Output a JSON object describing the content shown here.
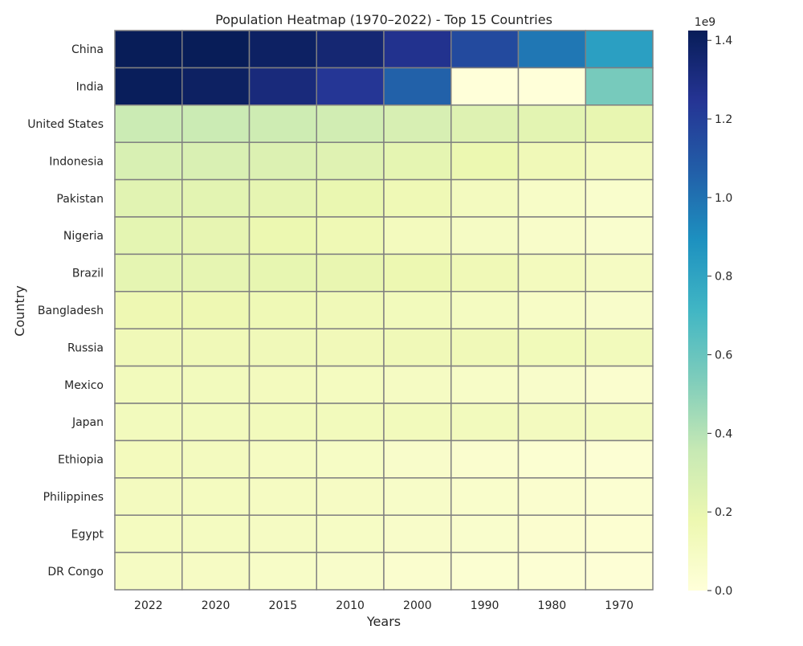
{
  "chart_data": {
    "type": "heatmap",
    "title": "Population Heatmap (1970–2022) - Top 15 Countries",
    "xlabel": "Years",
    "ylabel": "Country",
    "colormap": "YlGnBu",
    "colorbar": {
      "ticks": [
        0.0,
        0.2,
        0.4,
        0.6,
        0.8,
        1.0,
        1.2,
        1.4
      ],
      "tick_labels": [
        "0.0",
        "0.2",
        "0.4",
        "0.6",
        "0.8",
        "1.0",
        "1.2",
        "1.4"
      ],
      "scale_label": "1e9",
      "range": [
        0.0,
        1.425
      ]
    },
    "cell_border_color": "#808080",
    "x_labels": [
      "2022",
      "2020",
      "2015",
      "2010",
      "2000",
      "1990",
      "1980",
      "1970"
    ],
    "y_labels": [
      "China",
      "India",
      "United States",
      "Indonesia",
      "Pakistan",
      "Nigeria",
      "Brazil",
      "Bangladesh",
      "Russia",
      "Mexico",
      "Japan",
      "Ethiopia",
      "Philippines",
      "Egypt",
      "DR Congo"
    ],
    "values": [
      [
        1.425,
        1.424,
        1.393,
        1.348,
        1.264,
        1.154,
        0.982,
        0.822
      ],
      [
        1.417,
        1.396,
        1.322,
        1.24,
        1.059,
        0.0,
        0.0,
        0.557
      ],
      [
        0.338,
        0.336,
        0.325,
        0.311,
        0.282,
        0.248,
        0.223,
        0.2
      ],
      [
        0.275,
        0.271,
        0.259,
        0.244,
        0.214,
        0.182,
        0.148,
        0.115
      ],
      [
        0.236,
        0.227,
        0.21,
        0.194,
        0.154,
        0.115,
        0.081,
        0.059
      ],
      [
        0.218,
        0.208,
        0.183,
        0.16,
        0.122,
        0.095,
        0.073,
        0.055
      ],
      [
        0.215,
        0.213,
        0.205,
        0.196,
        0.175,
        0.15,
        0.122,
        0.096
      ],
      [
        0.171,
        0.167,
        0.157,
        0.148,
        0.129,
        0.107,
        0.083,
        0.067
      ],
      [
        0.145,
        0.146,
        0.144,
        0.143,
        0.147,
        0.148,
        0.138,
        0.13
      ],
      [
        0.127,
        0.125,
        0.12,
        0.112,
        0.098,
        0.081,
        0.067,
        0.05
      ],
      [
        0.124,
        0.126,
        0.128,
        0.128,
        0.127,
        0.124,
        0.117,
        0.105
      ],
      [
        0.123,
        0.118,
        0.102,
        0.089,
        0.067,
        0.048,
        0.035,
        0.028
      ],
      [
        0.116,
        0.112,
        0.103,
        0.094,
        0.077,
        0.061,
        0.048,
        0.037
      ],
      [
        0.111,
        0.107,
        0.097,
        0.087,
        0.071,
        0.057,
        0.043,
        0.034
      ],
      [
        0.1,
        0.092,
        0.078,
        0.066,
        0.048,
        0.035,
        0.026,
        0.02
      ]
    ]
  }
}
